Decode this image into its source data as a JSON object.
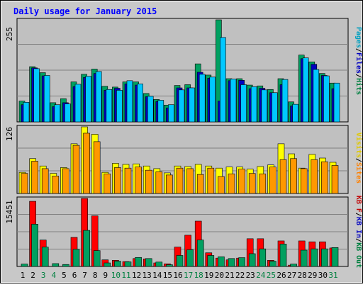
{
  "chart_data": [
    {
      "type": "bar",
      "panel": "pages-files-hits",
      "title": "Daily usage for January 2015",
      "ymax_label": "255",
      "ylim": [
        0,
        255
      ],
      "legend": [
        {
          "text": "Pages",
          "color": "#00a0c0"
        },
        {
          "text": "Files",
          "color": "#0000c0"
        },
        {
          "text": "Hits",
          "color": "#008040"
        }
      ],
      "categories": [
        "1",
        "2",
        "3",
        "4",
        "5",
        "6",
        "7",
        "8",
        "9",
        "10",
        "11",
        "12",
        "13",
        "14",
        "15",
        "16",
        "17",
        "18",
        "19",
        "20",
        "21",
        "22",
        "23",
        "24",
        "25",
        "26",
        "27",
        "28",
        "29",
        "30",
        "31"
      ],
      "weekend": [
        "3",
        "4",
        "10",
        "11",
        "17",
        "18",
        "24",
        "25",
        "31"
      ],
      "series": [
        {
          "name": "Hits",
          "color": "#00a060",
          "values": [
            52,
            138,
            123,
            48,
            58,
            100,
            119,
            132,
            89,
            87,
            100,
            100,
            71,
            56,
            42,
            91,
            93,
            145,
            117,
            255,
            108,
            108,
            92,
            90,
            81,
            108,
            50,
            167,
            150,
            121,
            97
          ]
        },
        {
          "name": "Files",
          "color": "#0000c0",
          "values": [
            43,
            135,
            115,
            38,
            48,
            88,
            111,
            121,
            79,
            84,
            95,
            92,
            63,
            51,
            35,
            85,
            85,
            124,
            109,
            52,
            103,
            104,
            83,
            84,
            73,
            93,
            40,
            158,
            144,
            116,
            83
          ]
        },
        {
          "name": "Pages",
          "color": "#00c8ff",
          "values": [
            49,
            133,
            116,
            43,
            45,
            94,
            114,
            126,
            81,
            79,
            103,
            95,
            64,
            54,
            43,
            80,
            85,
            119,
            112,
            211,
            107,
            93,
            88,
            80,
            73,
            106,
            44,
            160,
            131,
            115,
            97
          ]
        }
      ]
    },
    {
      "type": "bar",
      "panel": "visits-sites",
      "ymax_label": "126",
      "ylim": [
        0,
        126
      ],
      "legend": [
        {
          "text": "Visits",
          "color": "#e0c800"
        },
        {
          "text": "Sites",
          "color": "#ff8000"
        }
      ],
      "series": [
        {
          "name": "Visits",
          "color": "#ffff00",
          "values": [
            40,
            66,
            52,
            38,
            49,
            94,
            126,
            112,
            40,
            57,
            55,
            56,
            52,
            47,
            39,
            52,
            51,
            55,
            52,
            48,
            50,
            50,
            46,
            51,
            54,
            94,
            75,
            48,
            74,
            67,
            59
          ]
        },
        {
          "name": "Sites",
          "color": "#ff9800",
          "values": [
            38,
            61,
            47,
            33,
            47,
            91,
            114,
            98,
            37,
            49,
            48,
            50,
            44,
            41,
            35,
            48,
            47,
            36,
            48,
            32,
            37,
            46,
            38,
            37,
            50,
            64,
            66,
            47,
            64,
            60,
            53
          ]
        }
      ]
    },
    {
      "type": "bar",
      "panel": "kbytes",
      "ymax_label": "15451",
      "ylim": [
        0,
        15451
      ],
      "legend": [
        {
          "text": "KB F",
          "color": "#c00000"
        },
        {
          "text": "KB In",
          "color": "#0000c0"
        },
        {
          "text": "KB Out",
          "color": "#008040"
        }
      ],
      "series": [
        {
          "name": "KB F",
          "color": "#ff0000",
          "values": [
            0,
            14800,
            6000,
            0,
            0,
            6600,
            15451,
            11500,
            1500,
            1400,
            1100,
            1800,
            1700,
            800,
            600,
            4400,
            7100,
            10300,
            3100,
            1900,
            1500,
            1900,
            6300,
            6300,
            1400,
            5800,
            300,
            5800,
            5600,
            5600,
            4200
          ]
        },
        {
          "name": "KB Out",
          "color": "#00a060",
          "values": [
            550,
            9600,
            4400,
            650,
            450,
            3900,
            8200,
            3600,
            800,
            1200,
            1050,
            2050,
            1800,
            1000,
            400,
            2500,
            3800,
            6000,
            2500,
            2200,
            1800,
            2000,
            2900,
            4000,
            1200,
            5100,
            550,
            3700,
            4000,
            4000,
            4300
          ]
        }
      ]
    }
  ],
  "legend_separator": "/"
}
